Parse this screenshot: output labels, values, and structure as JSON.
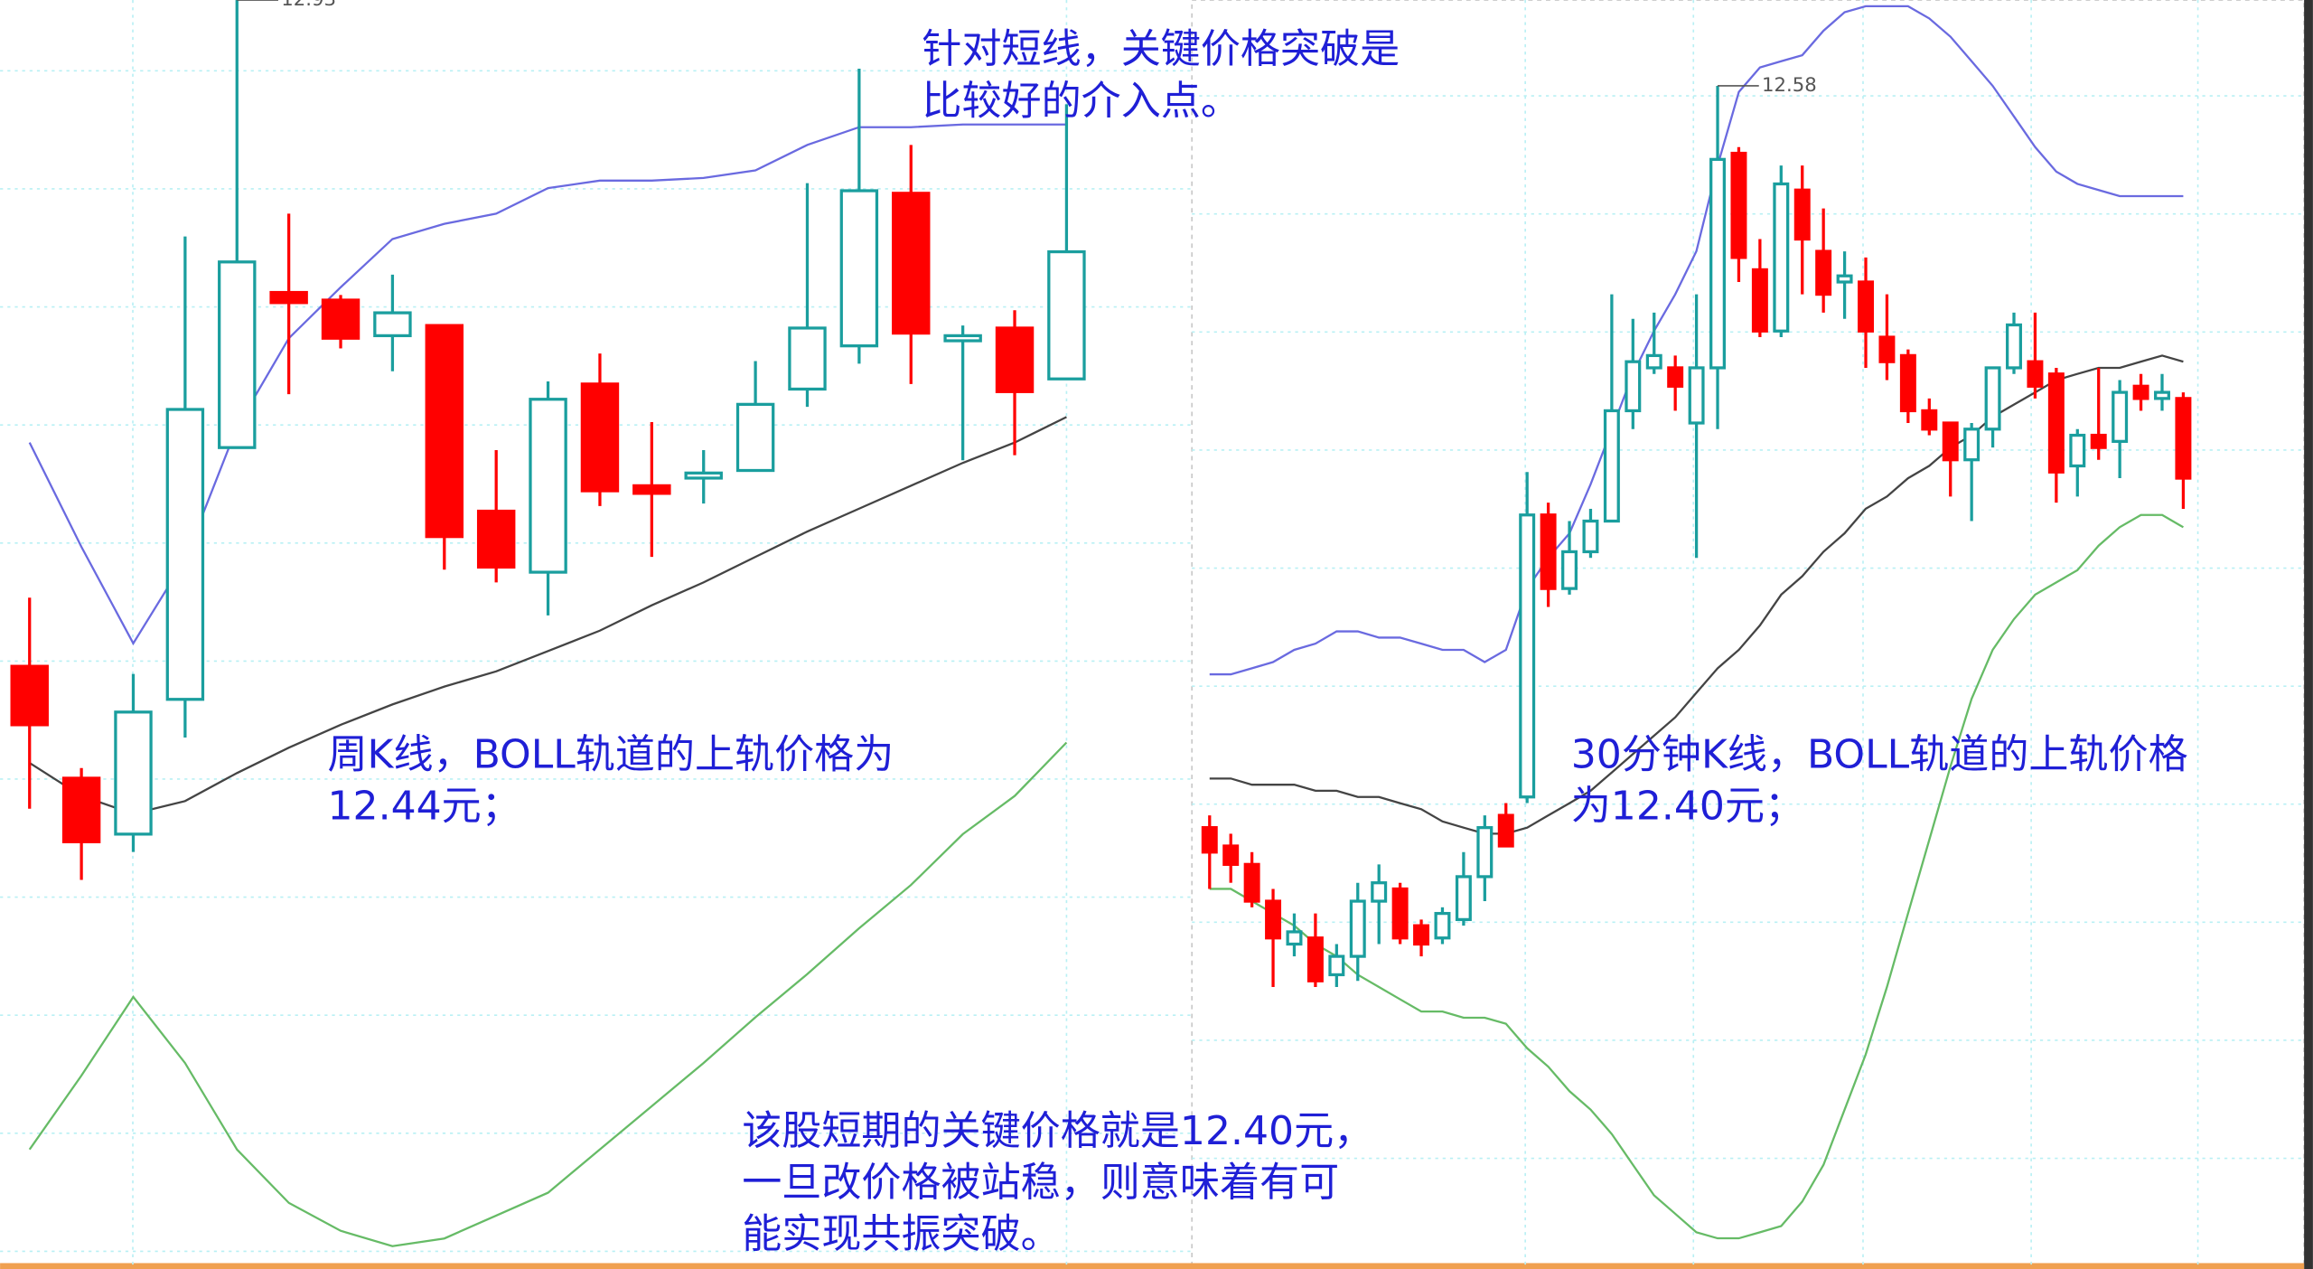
{
  "chart_data": [
    {
      "type": "candlestick",
      "ylim": [
        7.94,
        12.93
      ],
      "grid": true,
      "up_color": "#1a9e9e",
      "down_color": "#ff0000",
      "open": [
        10.31,
        9.87,
        9.65,
        10.18,
        11.17,
        11.78,
        11.75,
        11.61,
        11.65,
        10.92,
        10.68,
        11.42,
        11.02,
        11.05,
        11.08,
        11.4,
        11.57,
        12.17,
        11.59,
        11.64,
        11.44
      ],
      "high": [
        10.58,
        9.91,
        10.28,
        12.0,
        12.93,
        12.09,
        11.77,
        11.85,
        11.65,
        11.16,
        11.43,
        11.54,
        11.27,
        11.16,
        11.51,
        12.21,
        12.66,
        12.36,
        11.65,
        11.71,
        12.52
      ],
      "low": [
        9.75,
        9.47,
        9.58,
        10.03,
        11.17,
        11.38,
        11.56,
        11.47,
        10.69,
        10.64,
        10.51,
        10.94,
        10.74,
        10.95,
        11.08,
        11.33,
        11.5,
        11.42,
        11.12,
        11.14,
        11.44
      ],
      "close": [
        10.08,
        9.62,
        10.13,
        11.32,
        11.9,
        11.74,
        11.6,
        11.7,
        10.82,
        10.7,
        11.36,
        11.0,
        10.99,
        11.07,
        11.34,
        11.64,
        12.18,
        11.62,
        11.61,
        11.39,
        11.94
      ],
      "bands": [
        {
          "color": "#6a6ae0",
          "values": [
            11.19,
            10.78,
            10.4,
            10.73,
            11.25,
            11.6,
            11.8,
            11.99,
            12.05,
            12.09,
            12.19,
            12.22,
            12.22,
            12.23,
            12.26,
            12.36,
            12.43,
            12.43,
            12.44,
            12.44,
            12.44
          ]
        },
        {
          "color": "#444444",
          "values": [
            9.93,
            9.8,
            9.73,
            9.78,
            9.89,
            9.99,
            10.08,
            10.16,
            10.23,
            10.29,
            10.37,
            10.45,
            10.55,
            10.64,
            10.74,
            10.84,
            10.93,
            11.02,
            11.11,
            11.19,
            11.29
          ]
        },
        {
          "color": "#66bb66",
          "values": [
            8.41,
            8.7,
            9.01,
            8.75,
            8.41,
            8.2,
            8.09,
            8.03,
            8.06,
            8.15,
            8.24,
            8.41,
            8.58,
            8.75,
            8.93,
            9.1,
            9.28,
            9.45,
            9.65,
            9.8,
            10.01
          ]
        }
      ]
    },
    {
      "type": "candlestick",
      "ylim": [
        10.65,
        12.72
      ],
      "grid": true,
      "up_color": "#1a9e9e",
      "down_color": "#ff0000",
      "open": [
        11.37,
        11.34,
        11.31,
        11.25,
        11.18,
        11.19,
        11.13,
        11.16,
        11.25,
        11.27,
        11.21,
        11.19,
        11.22,
        11.29,
        11.39,
        11.42,
        11.88,
        11.76,
        11.82,
        11.87,
        12.05,
        12.12,
        12.12,
        12.03,
        12.12,
        12.47,
        12.28,
        12.18,
        12.41,
        12.31,
        12.26,
        12.26,
        12.17,
        12.14,
        12.05,
        12.03,
        11.97,
        12.02,
        12.12,
        12.13,
        12.11,
        11.96,
        12.01,
        12.0,
        12.09,
        12.07,
        12.07
      ],
      "high": [
        11.39,
        11.36,
        11.33,
        11.27,
        11.23,
        11.23,
        11.18,
        11.28,
        11.31,
        11.28,
        11.22,
        11.24,
        11.33,
        11.39,
        11.41,
        11.95,
        11.9,
        11.87,
        11.89,
        12.24,
        12.2,
        12.21,
        12.14,
        12.24,
        12.58,
        12.48,
        12.33,
        12.45,
        12.45,
        12.38,
        12.31,
        12.3,
        12.24,
        12.15,
        12.07,
        12.03,
        12.03,
        12.12,
        12.21,
        12.21,
        12.12,
        12.02,
        12.12,
        12.1,
        12.11,
        12.11,
        12.08
      ],
      "low": [
        11.27,
        11.28,
        11.24,
        11.11,
        11.16,
        11.11,
        11.11,
        11.12,
        11.18,
        11.18,
        11.16,
        11.18,
        11.21,
        11.25,
        11.34,
        11.41,
        11.73,
        11.75,
        11.81,
        11.87,
        12.02,
        12.11,
        12.05,
        11.81,
        12.02,
        12.26,
        12.17,
        12.17,
        12.24,
        12.21,
        12.2,
        12.12,
        12.1,
        12.03,
        12.01,
        11.91,
        11.87,
        11.99,
        12.11,
        12.07,
        11.9,
        11.91,
        11.97,
        11.94,
        12.05,
        12.05,
        11.89
      ],
      "close": [
        11.33,
        11.31,
        11.25,
        11.19,
        11.2,
        11.12,
        11.16,
        11.25,
        11.28,
        11.19,
        11.18,
        11.23,
        11.29,
        11.37,
        11.34,
        11.88,
        11.76,
        11.82,
        11.87,
        12.05,
        12.13,
        12.14,
        12.09,
        12.12,
        12.46,
        12.3,
        12.18,
        12.42,
        12.33,
        12.24,
        12.27,
        12.18,
        12.13,
        12.05,
        12.02,
        11.97,
        12.02,
        12.12,
        12.19,
        12.09,
        11.95,
        12.01,
        11.99,
        12.08,
        12.07,
        12.08,
        11.94
      ],
      "bands": [
        {
          "color": "#6a6ae0",
          "values": [
            11.62,
            11.62,
            11.63,
            11.64,
            11.66,
            11.67,
            11.69,
            11.69,
            11.68,
            11.68,
            11.67,
            11.66,
            11.66,
            11.64,
            11.66,
            11.76,
            11.81,
            11.85,
            11.93,
            12.02,
            12.11,
            12.18,
            12.24,
            12.31,
            12.45,
            12.57,
            12.61,
            12.62,
            12.63,
            12.67,
            12.7,
            12.71,
            12.71,
            12.71,
            12.69,
            12.66,
            12.62,
            12.58,
            12.53,
            12.48,
            12.44,
            12.42,
            12.41,
            12.4,
            12.4,
            12.4,
            12.4
          ]
        },
        {
          "color": "#444444",
          "values": [
            11.45,
            11.45,
            11.44,
            11.44,
            11.44,
            11.43,
            11.43,
            11.42,
            11.42,
            11.41,
            11.4,
            11.38,
            11.37,
            11.36,
            11.36,
            11.37,
            11.39,
            11.41,
            11.43,
            11.46,
            11.49,
            11.52,
            11.55,
            11.59,
            11.63,
            11.66,
            11.7,
            11.75,
            11.78,
            11.82,
            11.85,
            11.89,
            11.91,
            11.94,
            11.96,
            11.99,
            12.01,
            12.04,
            12.06,
            12.08,
            12.1,
            12.11,
            12.12,
            12.12,
            12.13,
            12.14,
            12.13
          ]
        },
        {
          "color": "#66bb66",
          "values": [
            11.27,
            11.27,
            11.25,
            11.23,
            11.21,
            11.18,
            11.16,
            11.13,
            11.11,
            11.09,
            11.07,
            11.07,
            11.06,
            11.06,
            11.05,
            11.01,
            10.98,
            10.94,
            10.91,
            10.87,
            10.82,
            10.77,
            10.74,
            10.71,
            10.7,
            10.7,
            10.71,
            10.72,
            10.76,
            10.82,
            10.91,
            11.0,
            11.11,
            11.23,
            11.35,
            11.47,
            11.58,
            11.66,
            11.71,
            11.75,
            11.77,
            11.79,
            11.83,
            11.86,
            11.88,
            11.88,
            11.86
          ]
        }
      ]
    }
  ],
  "annotations": [
    {
      "lines": [
        "针对短线，关键价格突破是",
        "比较好的介入点。"
      ]
    },
    {
      "lines": [
        "周K线，BOLL轨道的上轨价格为",
        "12.44元；"
      ]
    },
    {
      "lines": [
        "30分钟K线，BOLL轨道的上轨价格",
        "为12.40元；"
      ]
    },
    {
      "lines": [
        "该股短期的关键价格就是12.40元，",
        "一旦改价格被站稳，则意味着有可",
        "能实现共振突破。"
      ]
    }
  ]
}
